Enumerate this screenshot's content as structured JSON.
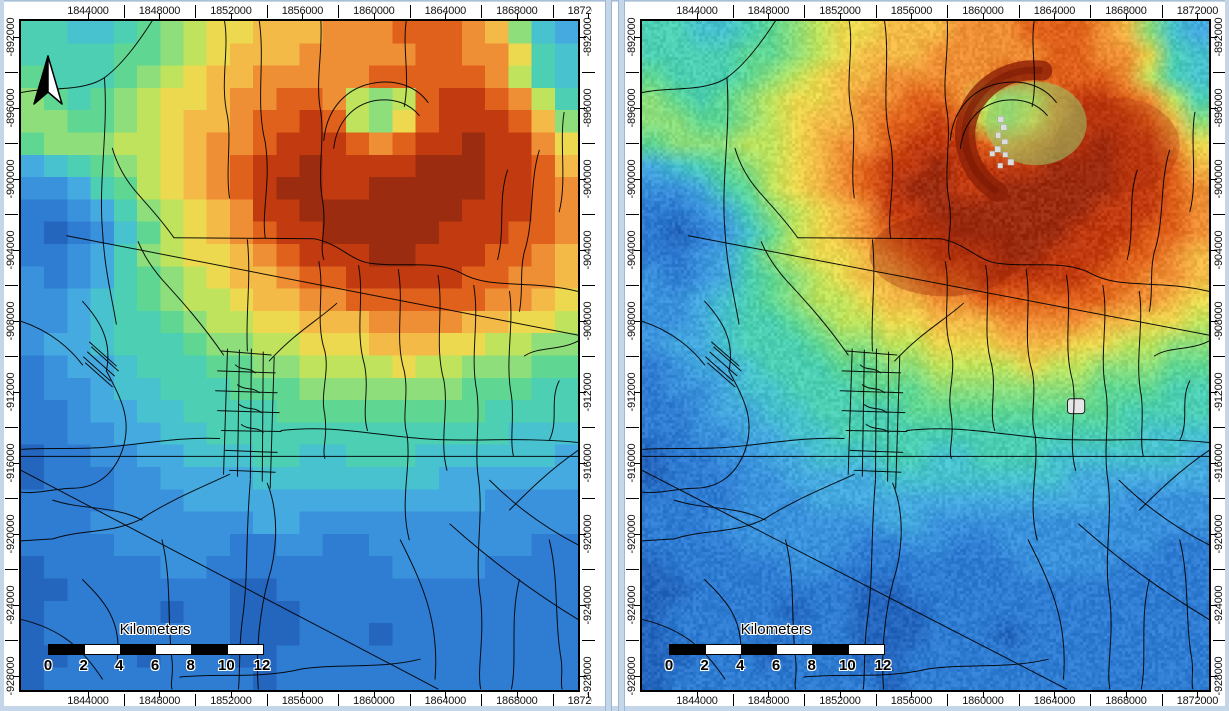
{
  "window": {
    "background": "#ffffff",
    "border_color": "#c6d6e9",
    "divider_color": "#c6d6e9"
  },
  "axes": {
    "x_tick_labels": [
      "1844000",
      "1848000",
      "1852000",
      "1856000",
      "1860000",
      "1864000",
      "1868000",
      "1872000"
    ],
    "y_tick_labels": [
      "-892000",
      "-896000",
      "-900000",
      "-904000",
      "-908000",
      "-912000",
      "-916000",
      "-920000",
      "-924000",
      "-928000"
    ]
  },
  "scale_bar": {
    "title": "Kilometers",
    "labels": [
      "0",
      "2",
      "4",
      "6",
      "8",
      "10",
      "12"
    ],
    "segments": [
      "#000000",
      "#ffffff",
      "#000000",
      "#ffffff",
      "#000000",
      "#ffffff"
    ]
  },
  "icons": {
    "north_arrow": "north-arrow"
  },
  "panels": [
    {
      "name": "left-map-frame",
      "raster_render": "pixelated",
      "show_north_arrow": true
    },
    {
      "name": "right-map-frame",
      "raster_render": "smooth",
      "show_north_arrow": false
    }
  ],
  "raster": {
    "cols": 24,
    "palette": {
      "a": "#9b2c10",
      "b": "#c23b10",
      "c": "#e0611b",
      "d": "#ef8f35",
      "e": "#f3ba47",
      "f": "#ecd94f",
      "g": "#bfe35c",
      "h": "#8edf7c",
      "i": "#5fd793",
      "j": "#4ccfb3",
      "k": "#47c2ce",
      "l": "#45aadf",
      "m": "#3b92dc",
      "n": "#2f7cd3",
      "o": "#2465bd"
    },
    "rows": [
      "jjkkjihgffeeedddcccdehkl",
      "jjjjiihgfeeedddddccddfjk",
      "ijjjihgfeedddddcccccdgjk",
      "hijihgffeddccdghgcbbcdgj",
      "hhiihgfeedccbcghfcbbbceh",
      "ihhhggfeddcbbbcdcbbabbdf",
      "lkjihgfedcbbabbbbaaabbce",
      "mmljigfedcbaabbaaaaabbcd",
      "nnmljhgfedbbaaaaaaabbbcd",
      "nonmkigfedcbbaaaaabbbccd",
      "nnmljhgffedcbbbaabbbccde",
      "mnmljihgfeedccbbbbbccdde",
      "mmlkjihggfeeddccccccddef",
      "mmlkjjihggffeeeddddeeffg",
      "mllkjjjihhggfffeeeffgghh",
      "nmllkjjjiihhggggfgghhhii",
      "nmmlkkjjjiiihhhhhhhiiijj",
      "nnmllkkjjjjiiiiiiiiijjjj",
      "nnmmllkkjjjjjjjjjjjjjkkk",
      "onnmmllkkkjjkkjjjkkkkkkl",
      "onnnmmllllkkkkkkkkllllll",
      "nnnnmmmlllllllllllllmmmm",
      "nnnmmmmmmmllmmmmmmmmmmmm",
      "nnnnmmmmmnnmmnnmmmmmmmnn",
      "onnnnnmmnnnnnnnnmmmmnnnn",
      "oonnnnnnnoonnnnnnnnnnnnn",
      "onnnnnonnooonnnnnnnnnnnn",
      "onnnnnnnnooonnnonnnnnnnn",
      "oonnnonnnoonnnnnnnnnnnnn",
      "onnnnnnnnnonnnnnnnnnnnnn"
    ]
  },
  "crater": {
    "rim_color": "#8a1f06",
    "bare_ground_color": "#dcdcdc"
  }
}
